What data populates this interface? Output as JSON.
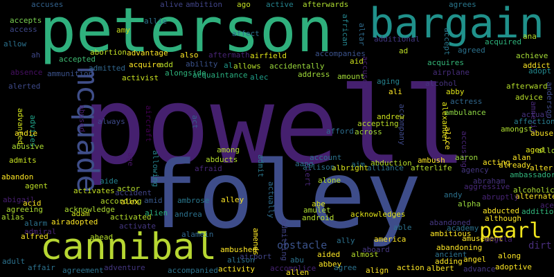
{
  "words": [
    {
      "text": "powell",
      "color": "#45206f"
    },
    {
      "text": "foley",
      "color": "#3e4d8a"
    },
    {
      "text": "peterson",
      "color": "#2fb07d"
    },
    {
      "text": "bargain",
      "color": "#20918b"
    },
    {
      "text": "cannibal",
      "color": "#b7d732"
    },
    {
      "text": "mcquade",
      "color": "#3f4e89"
    },
    {
      "text": "pearl",
      "color": "#f0e51e"
    },
    {
      "text": "obstacle",
      "color": "#3b538b"
    },
    {
      "text": "dirt",
      "color": "#472d7b"
    },
    {
      "text": "accuses",
      "color": "#33628d"
    },
    {
      "text": "alive",
      "color": "#414487"
    },
    {
      "text": "ambition",
      "color": "#414487"
    },
    {
      "text": "ago",
      "color": "#c2df23"
    },
    {
      "text": "active",
      "color": "#25838e"
    },
    {
      "text": "afterwards",
      "color": "#addc30"
    },
    {
      "text": "agrees",
      "color": "#2a788e"
    },
    {
      "text": "accepts",
      "color": "#7ad151"
    },
    {
      "text": "allie",
      "color": "#2c728e"
    },
    {
      "text": "amy",
      "color": "#cde11d"
    },
    {
      "text": "african",
      "color": "#25858e"
    },
    {
      "text": "altar",
      "color": "#2f6c8e"
    },
    {
      "text": "accept",
      "color": "#2a788e"
    },
    {
      "text": "ana",
      "color": "#b5de2b"
    },
    {
      "text": "access",
      "color": "#3f4889"
    },
    {
      "text": "affect",
      "color": "#2d718e"
    },
    {
      "text": "additional",
      "color": "#443983"
    },
    {
      "text": "acquired",
      "color": "#2fb47c"
    },
    {
      "text": "allow",
      "color": "#2c728e"
    },
    {
      "text": "ah",
      "color": "#3f4889"
    },
    {
      "text": "abortion",
      "color": "#c0df25"
    },
    {
      "text": "advantage",
      "color": "#fde725"
    },
    {
      "text": "also",
      "color": "#fde725"
    },
    {
      "text": "aftermath",
      "color": "#482475"
    },
    {
      "text": "airfield",
      "color": "#dfe318"
    },
    {
      "text": "accompanies",
      "color": "#3b528b"
    },
    {
      "text": "ad",
      "color": "#bddf26"
    },
    {
      "text": "agreed",
      "color": "#2c728e"
    },
    {
      "text": "achieve",
      "color": "#a5db36"
    },
    {
      "text": "addict",
      "color": "#fde725"
    },
    {
      "text": "adopt",
      "color": "#23898e"
    },
    {
      "text": "accepted",
      "color": "#3fbc73"
    },
    {
      "text": "acquire",
      "color": "#fde725"
    },
    {
      "text": "add",
      "color": "#b8de29"
    },
    {
      "text": "ability",
      "color": "#3b528b"
    },
    {
      "text": "al",
      "color": "#1f988b"
    },
    {
      "text": "allows",
      "color": "#b5de2b"
    },
    {
      "text": "accidentally",
      "color": "#9bd93c"
    },
    {
      "text": "aid",
      "color": "#cde11d"
    },
    {
      "text": "accused",
      "color": "#482173"
    },
    {
      "text": "acquires",
      "color": "#35b779"
    },
    {
      "text": "absence",
      "color": "#471063"
    },
    {
      "text": "ammunition",
      "color": "#3b528b"
    },
    {
      "text": "admitted",
      "color": "#31668e"
    },
    {
      "text": "alongside",
      "color": "#2fb47c"
    },
    {
      "text": "acquaintance",
      "color": "#29af7f"
    },
    {
      "text": "alec",
      "color": "#1f9e89"
    },
    {
      "text": "address",
      "color": "#a0da39"
    },
    {
      "text": "amount",
      "color": "#a2da37"
    },
    {
      "text": "airplane",
      "color": "#472d7b"
    },
    {
      "text": "afterward",
      "color": "#b5de2b"
    },
    {
      "text": "activist",
      "color": "#c8e020"
    },
    {
      "text": "alerted",
      "color": "#3e4989"
    },
    {
      "text": "aging",
      "color": "#26828e"
    },
    {
      "text": "ali",
      "color": "#fde725"
    },
    {
      "text": "alcohol",
      "color": "#46337e"
    },
    {
      "text": "abby",
      "color": "#dde318"
    },
    {
      "text": "advice",
      "color": "#b8de29"
    },
    {
      "text": "anderson",
      "color": "#3e4a89"
    },
    {
      "text": "actress",
      "color": "#31688e"
    },
    {
      "text": "amnesia",
      "color": "#482878"
    },
    {
      "text": "actual",
      "color": "#46327e"
    },
    {
      "text": "affection",
      "color": "#287c8e"
    },
    {
      "text": "abuse",
      "color": "#fde725"
    },
    {
      "text": "advanced",
      "color": "#d0e11c"
    },
    {
      "text": "advises",
      "color": "#1fa187"
    },
    {
      "text": "abused",
      "color": "#481f70"
    },
    {
      "text": "always",
      "color": "#3e4a89"
    },
    {
      "text": "aircraft",
      "color": "#440154"
    },
    {
      "text": "act",
      "color": "#355f8d"
    },
    {
      "text": "accompany",
      "color": "#3e4989"
    },
    {
      "text": "accepting",
      "color": "#bade28"
    },
    {
      "text": "alexander",
      "color": "#e2e418"
    },
    {
      "text": "ambulance",
      "color": "#8fd744"
    },
    {
      "text": "andie",
      "color": "#fde725"
    },
    {
      "text": "afford",
      "color": "#2e6d8e"
    },
    {
      "text": "across",
      "color": "#a5db36"
    },
    {
      "text": "andrew",
      "color": "#cde11d"
    },
    {
      "text": "alice",
      "color": "#fde725"
    },
    {
      "text": "accusing",
      "color": "#482475"
    },
    {
      "text": "amongst",
      "color": "#addc30"
    },
    {
      "text": "aged",
      "color": "#dfe318"
    },
    {
      "text": "abusive",
      "color": "#addc30"
    },
    {
      "text": "admits",
      "color": "#c5e021"
    },
    {
      "text": "age",
      "color": "#481668"
    },
    {
      "text": "allowing",
      "color": "#26828e"
    },
    {
      "text": "among",
      "color": "#b5de2b"
    },
    {
      "text": "abducts",
      "color": "#b5de2b"
    },
    {
      "text": "admit",
      "color": "#2a788e"
    },
    {
      "text": "alert",
      "color": "#482677"
    },
    {
      "text": "aang",
      "color": "#2d708e"
    },
    {
      "text": "account",
      "color": "#2c728e"
    },
    {
      "text": "aim",
      "color": "#2a788e"
    },
    {
      "text": "abduction",
      "color": "#b5de2b"
    },
    {
      "text": "ambush",
      "color": "#fde725"
    },
    {
      "text": "aaron",
      "color": "#9bd93c"
    },
    {
      "text": "acting",
      "color": "#fde725"
    },
    {
      "text": "alan",
      "color": "#fde725"
    },
    {
      "text": "allowed",
      "color": "#addc30"
    },
    {
      "text": "alter",
      "color": "#fde725"
    },
    {
      "text": "afraid",
      "color": "#482878"
    },
    {
      "text": "albright",
      "color": "#d8e219"
    },
    {
      "text": "alliance",
      "color": "#2c728e"
    },
    {
      "text": "afterlife",
      "color": "#b5de2b"
    },
    {
      "text": "agency",
      "color": "#453781"
    },
    {
      "text": "already",
      "color": "#fde725"
    },
    {
      "text": "ambassador",
      "color": "#31b57b"
    },
    {
      "text": "abandon",
      "color": "#fde725"
    },
    {
      "text": "aide",
      "color": "#26828e"
    },
    {
      "text": "actually",
      "color": "#2e6d8e"
    },
    {
      "text": "allison",
      "color": "#2c728e"
    },
    {
      "text": "abraham",
      "color": "#46327e"
    },
    {
      "text": "alcoholic",
      "color": "#addc30"
    },
    {
      "text": "agent",
      "color": "#bddf26"
    },
    {
      "text": "actor",
      "color": "#b5de2b"
    },
    {
      "text": "activates",
      "color": "#c2df23"
    },
    {
      "text": "accident",
      "color": "#414487"
    },
    {
      "text": "alone",
      "color": "#b5de2b"
    },
    {
      "text": "aggressive",
      "color": "#482878"
    },
    {
      "text": "alternate",
      "color": "#fde725"
    },
    {
      "text": "abigail",
      "color": "#481f70"
    },
    {
      "text": "according",
      "color": "#b5de2b"
    },
    {
      "text": "alex",
      "color": "#fde725"
    },
    {
      "text": "amid",
      "color": "#38598c"
    },
    {
      "text": "ambrose",
      "color": "#2a788e"
    },
    {
      "text": "alley",
      "color": "#fde725"
    },
    {
      "text": "abe",
      "color": "#d8e219"
    },
    {
      "text": "andy",
      "color": "#2c728e"
    },
    {
      "text": "abruptly",
      "color": "#482475"
    },
    {
      "text": "ace",
      "color": "#482475"
    },
    {
      "text": "acid",
      "color": "#fde725"
    },
    {
      "text": "agreeing",
      "color": "#addc30"
    },
    {
      "text": "acknowledge",
      "color": "#addc30"
    },
    {
      "text": "amulet",
      "color": "#addc30"
    },
    {
      "text": "alpha",
      "color": "#9bd93c"
    },
    {
      "text": "alias",
      "color": "#addc30"
    },
    {
      "text": "adam",
      "color": "#cde11d"
    },
    {
      "text": "alien",
      "color": "#29af7f"
    },
    {
      "text": "andrea",
      "color": "#2c728e"
    },
    {
      "text": "acknowledges",
      "color": "#e2e418"
    },
    {
      "text": "android",
      "color": "#b5de2b"
    },
    {
      "text": "abducted",
      "color": "#fde725"
    },
    {
      "text": "addition",
      "color": "#31b57b"
    },
    {
      "text": "alarm",
      "color": "#2c728e"
    },
    {
      "text": "air",
      "color": "#fde725"
    },
    {
      "text": "adopted",
      "color": "#fde725"
    },
    {
      "text": "activated",
      "color": "#b5de2b"
    },
    {
      "text": "although",
      "color": "#fde725"
    },
    {
      "text": "admiral",
      "color": "#482475"
    },
    {
      "text": "activate",
      "color": "#453781"
    },
    {
      "text": "amends",
      "color": "#fde725"
    },
    {
      "text": "admitting",
      "color": "#414487"
    },
    {
      "text": "abandoned",
      "color": "#453781"
    },
    {
      "text": "able",
      "color": "#2c728e"
    },
    {
      "text": "academy",
      "color": "#2c728e"
    },
    {
      "text": "ambitious",
      "color": "#fde725"
    },
    {
      "text": "amusement",
      "color": "#fde725"
    },
    {
      "text": "angela",
      "color": "#482475"
    },
    {
      "text": "alfred",
      "color": "#fde725"
    },
    {
      "text": "ahead",
      "color": "#b5de2b"
    },
    {
      "text": "alamein",
      "color": "#31688e"
    },
    {
      "text": "ally",
      "color": "#2c728e"
    },
    {
      "text": "america",
      "color": "#fde725"
    },
    {
      "text": "abandoning",
      "color": "#fde725"
    },
    {
      "text": "ancient",
      "color": "#2c728e"
    },
    {
      "text": "aboard",
      "color": "#453781"
    },
    {
      "text": "ambushed",
      "color": "#fde725"
    },
    {
      "text": "alison",
      "color": "#2c728e"
    },
    {
      "text": "aided",
      "color": "#fde725"
    },
    {
      "text": "almost",
      "color": "#b5de2b"
    },
    {
      "text": "angel",
      "color": "#fde725"
    },
    {
      "text": "adding",
      "color": "#fde725"
    },
    {
      "text": "along",
      "color": "#fde725"
    },
    {
      "text": "adult",
      "color": "#2c728e"
    },
    {
      "text": "affair",
      "color": "#2c728e"
    },
    {
      "text": "adventure",
      "color": "#453781"
    },
    {
      "text": "airport",
      "color": "#414487"
    },
    {
      "text": "abu",
      "color": "#2c728e"
    },
    {
      "text": "abbey",
      "color": "#fde725"
    },
    {
      "text": "accomplice",
      "color": "#482475"
    },
    {
      "text": "agree",
      "color": "#2c728e"
    },
    {
      "text": "align",
      "color": "#fde725"
    },
    {
      "text": "action",
      "color": "#fde725"
    },
    {
      "text": "albert",
      "color": "#fde725"
    },
    {
      "text": "adoptive",
      "color": "#fde725"
    },
    {
      "text": "advance",
      "color": "#453781"
    },
    {
      "text": "agreement",
      "color": "#2c728e"
    },
    {
      "text": "accompanied",
      "color": "#2c728e"
    },
    {
      "text": "activity",
      "color": "#fde725"
    },
    {
      "text": "allen",
      "color": "#fde725"
    }
  ]
}
